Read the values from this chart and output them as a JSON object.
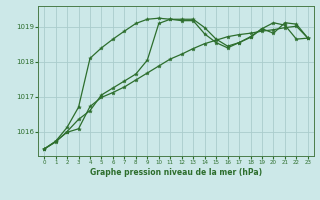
{
  "title": "Graphe pression niveau de la mer (hPa)",
  "background_color": "#cce8e8",
  "grid_color": "#aacccc",
  "line_color": "#2d6e2d",
  "spine_color": "#4a7c4a",
  "xlim": [
    -0.5,
    23.5
  ],
  "ylim": [
    1015.3,
    1019.6
  ],
  "yticks": [
    1016,
    1017,
    1018,
    1019
  ],
  "xticks": [
    0,
    1,
    2,
    3,
    4,
    5,
    6,
    7,
    8,
    9,
    10,
    11,
    12,
    13,
    14,
    15,
    16,
    17,
    18,
    19,
    20,
    21,
    22,
    23
  ],
  "series": [
    [
      1015.5,
      1015.7,
      1016.0,
      1016.35,
      1016.6,
      1017.05,
      1017.25,
      1017.45,
      1017.65,
      1018.05,
      1019.1,
      1019.22,
      1019.18,
      1019.18,
      1018.8,
      1018.55,
      1018.4,
      1018.55,
      1018.7,
      1018.95,
      1019.12,
      1019.05,
      1018.65,
      1018.68
    ],
    [
      1015.5,
      1015.72,
      1016.12,
      1016.7,
      1018.1,
      1018.4,
      1018.65,
      1018.88,
      1019.1,
      1019.22,
      1019.25,
      1019.22,
      1019.22,
      1019.22,
      1018.98,
      1018.65,
      1018.45,
      1018.55,
      1018.72,
      1018.95,
      1018.82,
      1019.12,
      1019.08,
      1018.68
    ],
    [
      1015.5,
      1015.72,
      1015.98,
      1016.08,
      1016.72,
      1016.98,
      1017.12,
      1017.28,
      1017.48,
      1017.68,
      1017.88,
      1018.08,
      1018.22,
      1018.38,
      1018.52,
      1018.62,
      1018.72,
      1018.78,
      1018.82,
      1018.88,
      1018.92,
      1018.98,
      1019.02,
      1018.68
    ]
  ]
}
